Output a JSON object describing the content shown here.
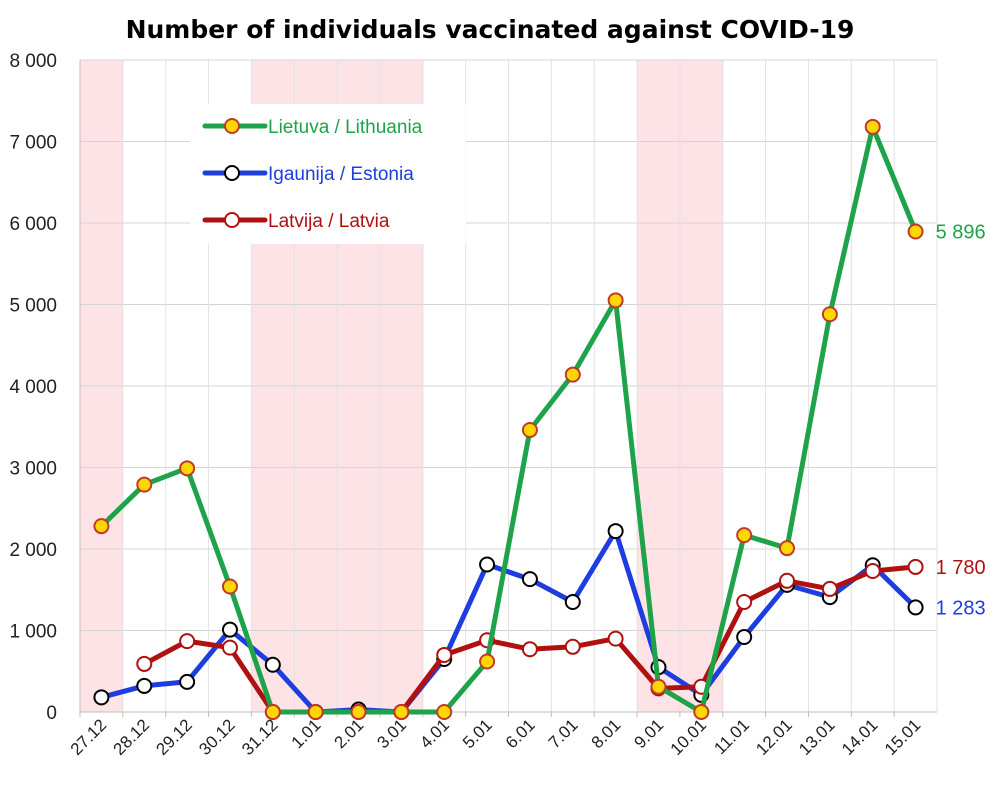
{
  "chart_data": {
    "type": "line",
    "title": "Number of individuals vaccinated against COVID-19",
    "xlabel": "",
    "ylabel": "",
    "ylim": [
      0,
      8000
    ],
    "yticks": [
      0,
      1000,
      2000,
      3000,
      4000,
      5000,
      6000,
      7000,
      8000
    ],
    "ytick_labels": [
      "0",
      "1 000",
      "2 000",
      "3 000",
      "4 000",
      "5 000",
      "6 000",
      "7 000",
      "8 000"
    ],
    "grid": true,
    "legend_position": "top-left",
    "categories": [
      "27.12",
      "28.12",
      "29.12",
      "30.12",
      "31.12",
      "1.01",
      "2.01",
      "3.01",
      "4.01",
      "5.01",
      "6.01",
      "7.01",
      "8.01",
      "9.01",
      "10.01",
      "11.01",
      "12.01",
      "13.01",
      "14.01",
      "15.01"
    ],
    "shaded_days": [
      "27.12",
      "31.12",
      "1.01",
      "2.01",
      "3.01",
      "9.01",
      "10.01"
    ],
    "shade_color": "#fde3e5",
    "series": [
      {
        "name": "Lietuva / Lithuania",
        "color": "#1fa34a",
        "marker_fill": "#ffd700",
        "marker_stroke": "#c0392b",
        "values": [
          2280,
          2790,
          2990,
          1540,
          0,
          0,
          0,
          0,
          0,
          620,
          3460,
          4140,
          5050,
          310,
          0,
          2170,
          2010,
          4880,
          7180,
          5896
        ],
        "end_label": "5 896"
      },
      {
        "name": "Igaunija / Estonia",
        "color": "#1e3de0",
        "marker_fill": "#ffffff",
        "marker_stroke": "#000000",
        "values": [
          180,
          320,
          370,
          1010,
          580,
          0,
          30,
          0,
          650,
          1810,
          1630,
          1350,
          2220,
          550,
          210,
          920,
          1560,
          1410,
          1800,
          1283
        ],
        "end_label": "1 283"
      },
      {
        "name": "Latvija / Latvia",
        "color": "#b01010",
        "marker_fill": "#ffffff",
        "marker_stroke": "#b01010",
        "values": [
          null,
          590,
          870,
          790,
          0,
          0,
          0,
          0,
          700,
          880,
          770,
          800,
          900,
          290,
          310,
          1350,
          1610,
          1510,
          1730,
          1780
        ],
        "end_label": "1 780"
      }
    ]
  }
}
